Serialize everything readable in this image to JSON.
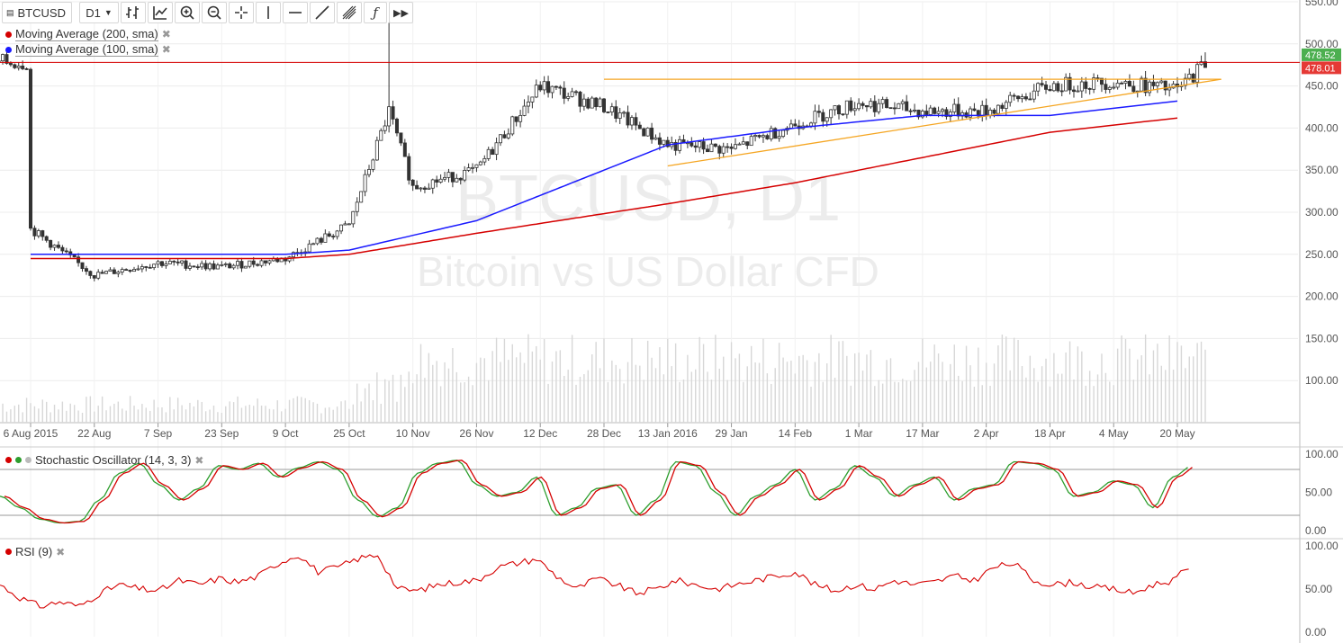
{
  "toolbar": {
    "symbol": "BTCUSD",
    "timeframe": "D1",
    "icons": [
      "bar-type-icon",
      "indicator-icon",
      "zoom-in-icon",
      "zoom-out-icon",
      "crosshair-icon",
      "vertical-line-icon",
      "horizontal-line-icon",
      "trend-line-icon",
      "fib-icon",
      "function-icon",
      "fast-forward-icon"
    ]
  },
  "legend": {
    "ma200": {
      "label": "Moving Average (200, sma)",
      "color": "#d50000"
    },
    "ma100": {
      "label": "Moving Average (100, sma)",
      "color": "#1a1aff"
    },
    "stoch": {
      "label": "Stochastic Oscillator (14, 3, 3)"
    },
    "rsi": {
      "label": "RSI (9)",
      "color": "#d50000"
    }
  },
  "watermark": {
    "line1": "BTCUSD, D1",
    "line2": "Bitcoin vs US Dollar CFD"
  },
  "colors": {
    "up": "#333333",
    "down": "#333333",
    "ma200": "#d50000",
    "ma100": "#1a1aff",
    "trend": "#f5a623",
    "hline": "#d50000",
    "stochK": "#2e9e2e",
    "stochD": "#d50000",
    "rsi": "#d50000",
    "price_badge_green": "#4caf50",
    "price_badge_red": "#e53935"
  },
  "chart_data": [
    {
      "type": "candlestick",
      "title": "BTCUSD, D1",
      "ylim": [
        50,
        550
      ],
      "yticks": [
        100,
        150,
        200,
        250,
        300,
        350,
        400,
        450,
        500,
        550
      ],
      "ytick_labels": [
        "100.00",
        "150.00",
        "200.00",
        "250.00",
        "300.00",
        "350.00",
        "400.00",
        "450.00",
        "500.00",
        "550.00"
      ],
      "x_labels": [
        "6 Aug 2015",
        "22 Aug",
        "7 Sep",
        "23 Sep",
        "9 Oct",
        "25 Oct",
        "10 Nov",
        "26 Nov",
        "12 Dec",
        "28 Dec",
        "13 Jan 2016",
        "29 Jan",
        "14 Feb",
        "1 Mar",
        "17 Mar",
        "2 Apr",
        "18 Apr",
        "4 May",
        "20 May"
      ],
      "price_labels": [
        {
          "value": 478.52,
          "text": "478.52",
          "color": "#4caf50"
        },
        {
          "value": 478.01,
          "text": "478.01",
          "color": "#e53935"
        }
      ],
      "horizontal_line": 478,
      "key_points": [
        {
          "date": "6 Aug 2015",
          "close": 280
        },
        {
          "date": "22 Aug",
          "close": 225
        },
        {
          "date": "7 Sep",
          "close": 240
        },
        {
          "date": "23 Sep",
          "close": 235
        },
        {
          "date": "9 Oct",
          "close": 245
        },
        {
          "date": "25 Oct",
          "close": 285
        },
        {
          "date": "4 Nov",
          "close": 420,
          "high": 525
        },
        {
          "date": "10 Nov",
          "close": 330
        },
        {
          "date": "26 Nov",
          "close": 350
        },
        {
          "date": "12 Dec",
          "close": 450
        },
        {
          "date": "28 Dec",
          "close": 425
        },
        {
          "date": "13 Jan 2016",
          "close": 380
        },
        {
          "date": "29 Jan",
          "close": 375
        },
        {
          "date": "14 Feb",
          "close": 405
        },
        {
          "date": "1 Mar",
          "close": 430
        },
        {
          "date": "17 Mar",
          "close": 420
        },
        {
          "date": "2 Apr",
          "close": 420
        },
        {
          "date": "18 Apr",
          "close": 450
        },
        {
          "date": "4 May",
          "close": 455
        },
        {
          "date": "20 May",
          "close": 445
        },
        {
          "date": "27 May",
          "close": 478,
          "high": 490
        }
      ],
      "ma200": [
        {
          "date": "6 Aug 2015",
          "value": 245
        },
        {
          "date": "9 Oct",
          "value": 245
        },
        {
          "date": "25 Oct",
          "value": 250
        },
        {
          "date": "26 Nov",
          "value": 275
        },
        {
          "date": "13 Jan 2016",
          "value": 310
        },
        {
          "date": "14 Feb",
          "value": 335
        },
        {
          "date": "17 Mar",
          "value": 365
        },
        {
          "date": "18 Apr",
          "value": 395
        },
        {
          "date": "20 May",
          "value": 412
        }
      ],
      "ma100": [
        {
          "date": "6 Aug 2015",
          "value": 250
        },
        {
          "date": "9 Oct",
          "value": 250
        },
        {
          "date": "25 Oct",
          "value": 255
        },
        {
          "date": "26 Nov",
          "value": 290
        },
        {
          "date": "28 Dec",
          "value": 350
        },
        {
          "date": "13 Jan 2016",
          "value": 380
        },
        {
          "date": "14 Feb",
          "value": 400
        },
        {
          "date": "17 Mar",
          "value": 415
        },
        {
          "date": "18 Apr",
          "value": 415
        },
        {
          "date": "20 May",
          "value": 432
        }
      ],
      "trend_lines": [
        {
          "name": "resistance",
          "from": {
            "date": "28 Dec",
            "value": 458
          },
          "to": {
            "date": "31 May",
            "value": 458
          }
        },
        {
          "name": "support",
          "from": {
            "date": "13 Jan 2016",
            "value": 355
          },
          "to": {
            "date": "31 May",
            "value": 458
          }
        }
      ]
    },
    {
      "type": "line",
      "title": "Stochastic Oscillator (14, 3, 3)",
      "ylim": [
        0,
        100
      ],
      "yticks": [
        0,
        50,
        100
      ],
      "ytick_labels": [
        "0.00",
        "50.00",
        "100.00"
      ],
      "levels": [
        20,
        80
      ],
      "series": [
        {
          "name": "%K",
          "values": [
            45,
            30,
            15,
            10,
            12,
            40,
            75,
            88,
            60,
            40,
            55,
            85,
            80,
            88,
            70,
            82,
            90,
            80,
            40,
            18,
            30,
            75,
            88,
            92,
            60,
            45,
            50,
            70,
            20,
            30,
            55,
            60,
            20,
            40,
            90,
            85,
            50,
            20,
            45,
            60,
            80,
            40,
            55,
            85,
            70,
            45,
            60,
            70,
            40,
            55,
            60,
            90,
            88,
            80,
            45,
            50,
            65,
            60,
            30,
            70,
            85
          ]
        }
      ]
    },
    {
      "type": "line",
      "title": "RSI (9)",
      "ylim": [
        0,
        100
      ],
      "yticks": [
        0,
        50,
        100
      ],
      "ytick_labels": [
        "0.00",
        "50.00",
        "100.00"
      ],
      "series": [
        {
          "name": "RSI",
          "values": [
            55,
            40,
            30,
            35,
            30,
            45,
            55,
            50,
            48,
            60,
            55,
            62,
            58,
            65,
            80,
            90,
            70,
            75,
            85,
            90,
            50,
            48,
            55,
            58,
            60,
            75,
            80,
            85,
            65,
            50,
            62,
            55,
            45,
            50,
            60,
            55,
            50,
            55,
            60,
            65,
            70,
            55,
            48,
            55,
            50,
            60,
            55,
            58,
            65,
            60,
            75,
            80,
            60,
            55,
            58,
            52,
            50,
            45,
            55,
            60,
            78
          ]
        }
      ]
    }
  ]
}
